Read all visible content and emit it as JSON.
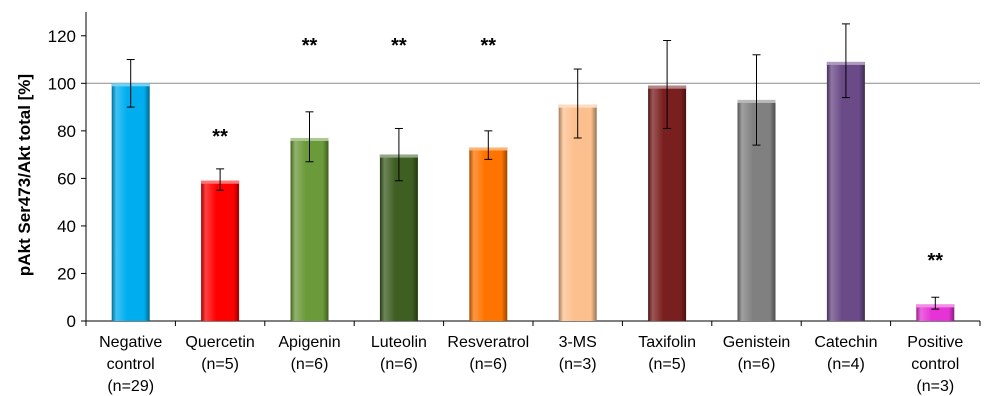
{
  "chart_data": {
    "type": "bar",
    "ylabel": "pAkt Ser473/Akt total [%]",
    "xlabel": "",
    "ylim": [
      0,
      130
    ],
    "yticks": [
      0,
      20,
      40,
      60,
      80,
      100,
      120
    ],
    "reference_line": 100,
    "categories": [
      {
        "lines": [
          "Negative",
          "control",
          "(n=29)"
        ],
        "value": 100,
        "err_low": 90,
        "err_high": 110,
        "color": "#00AEEF",
        "sig": ""
      },
      {
        "lines": [
          "Quercetin",
          "(n=5)"
        ],
        "value": 59,
        "err_low": 55,
        "err_high": 64,
        "color": "#FF0000",
        "sig": "**"
      },
      {
        "lines": [
          "Apigenin",
          "(n=6)"
        ],
        "value": 77,
        "err_low": 67,
        "err_high": 88,
        "color": "#6B9A3A",
        "sig": "**"
      },
      {
        "lines": [
          "Luteolin",
          "(n=6)"
        ],
        "value": 70,
        "err_low": 59,
        "err_high": 81,
        "color": "#3E5E22",
        "sig": "**"
      },
      {
        "lines": [
          "Resveratrol",
          "(n=6)"
        ],
        "value": 73,
        "err_low": 68,
        "err_high": 80,
        "color": "#FF7400",
        "sig": "**"
      },
      {
        "lines": [
          "3-MS",
          "(n=3)"
        ],
        "value": 91,
        "err_low": 77,
        "err_high": 106,
        "color": "#FCC08E",
        "sig": ""
      },
      {
        "lines": [
          "Taxifolin",
          "(n=5)"
        ],
        "value": 99,
        "err_low": 81,
        "err_high": 118,
        "color": "#7A1F1F",
        "sig": ""
      },
      {
        "lines": [
          "Genistein",
          "(n=6)"
        ],
        "value": 93,
        "err_low": 74,
        "err_high": 112,
        "color": "#808080",
        "sig": ""
      },
      {
        "lines": [
          "Catechin",
          "(n=4)"
        ],
        "value": 109,
        "err_low": 94,
        "err_high": 125,
        "color": "#6A4A87",
        "sig": ""
      },
      {
        "lines": [
          "Positive",
          "control",
          "(n=3)"
        ],
        "value": 7,
        "err_low": 5,
        "err_high": 10,
        "color": "#E633D6",
        "sig": "**"
      }
    ]
  }
}
